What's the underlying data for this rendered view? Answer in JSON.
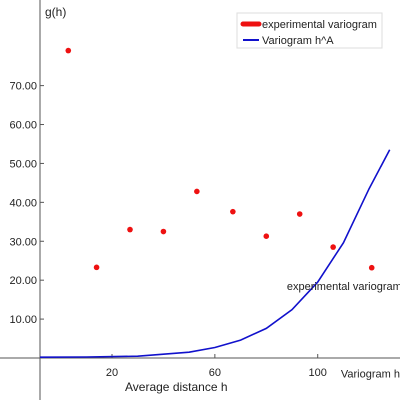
{
  "chart_data": {
    "type": "scatter",
    "ylabel": "g(h)",
    "xlabel": "Average distance h",
    "xlim": [
      -8,
      132
    ],
    "ylim": [
      0,
      92
    ],
    "x_ticks": [
      {
        "value": 20,
        "label": "20"
      },
      {
        "value": 60,
        "label": "60"
      },
      {
        "value": 100,
        "label": "100"
      }
    ],
    "y_ticks": [
      {
        "value": 10,
        "label": "10.00"
      },
      {
        "value": 20,
        "label": "20.00"
      },
      {
        "value": 30,
        "label": "30.00"
      },
      {
        "value": 40,
        "label": "40.00"
      },
      {
        "value": 50,
        "label": "50.00"
      },
      {
        "value": 60,
        "label": "60.00"
      },
      {
        "value": 70,
        "label": "70.00"
      }
    ],
    "grid": false,
    "legend_position": "top-right",
    "series": [
      {
        "name": "experimental variogram",
        "kind": "scatter",
        "color": "#ee1111",
        "points": [
          {
            "x": 3,
            "y": 79
          },
          {
            "x": 14,
            "y": 23.3
          },
          {
            "x": 27,
            "y": 33
          },
          {
            "x": 40,
            "y": 32.5
          },
          {
            "x": 53,
            "y": 42.8
          },
          {
            "x": 67,
            "y": 37.6
          },
          {
            "x": 80,
            "y": 31.3
          },
          {
            "x": 93,
            "y": 37
          },
          {
            "x": 106,
            "y": 28.5
          },
          {
            "x": 121,
            "y": 23.2
          }
        ]
      },
      {
        "name": "Variogram h^A",
        "kind": "line",
        "color": "#1111cc",
        "points": [
          {
            "x": -8,
            "y": 0.2
          },
          {
            "x": 10,
            "y": 0.25
          },
          {
            "x": 30,
            "y": 0.45
          },
          {
            "x": 50,
            "y": 1.5
          },
          {
            "x": 60,
            "y": 2.7
          },
          {
            "x": 70,
            "y": 4.6
          },
          {
            "x": 80,
            "y": 7.6
          },
          {
            "x": 90,
            "y": 12.4
          },
          {
            "x": 100,
            "y": 19.5
          },
          {
            "x": 110,
            "y": 29.6
          },
          {
            "x": 120,
            "y": 43.5
          },
          {
            "x": 128,
            "y": 53.5
          }
        ]
      }
    ],
    "annotations": [
      {
        "text": "experimental variogram",
        "x": 88,
        "y": 17.5
      },
      {
        "text": "Variogram h^A",
        "x": 109,
        "y": -5
      }
    ]
  }
}
